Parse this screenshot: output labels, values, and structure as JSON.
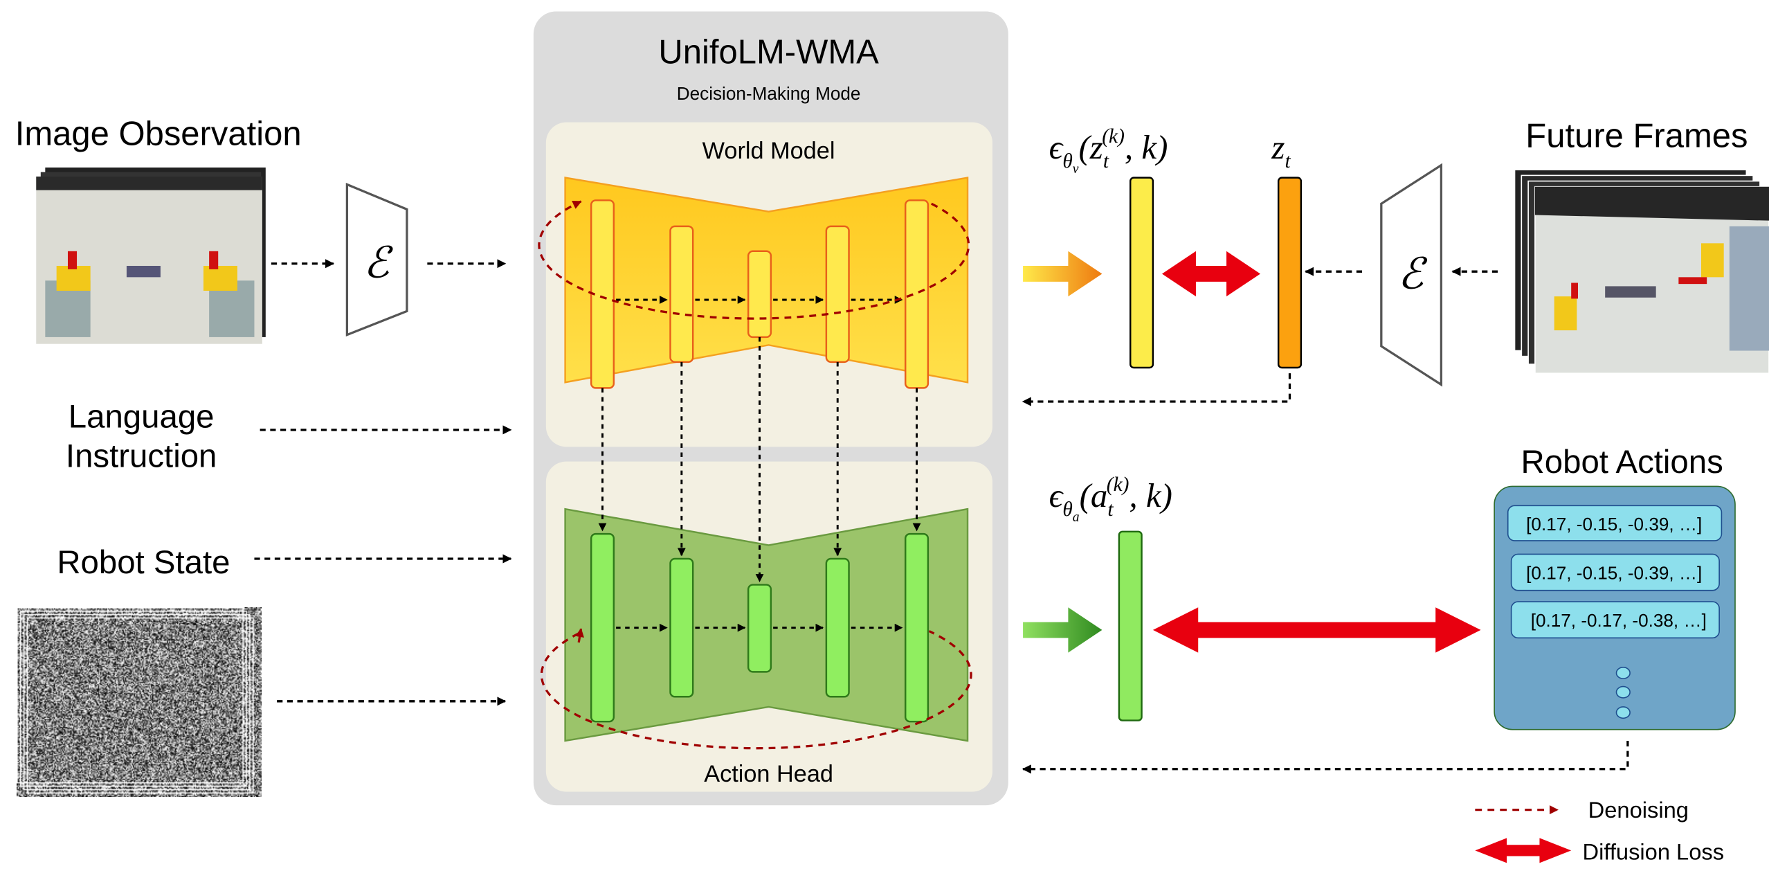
{
  "title": "UnifoLM-WMA",
  "subtitle": "Decision-Making Mode",
  "world_model_label": "World Model",
  "action_head_label": "Action Head",
  "inputs": {
    "image_observation": "Image Observation",
    "language_instruction_line1": "Language",
    "language_instruction_line2": "Instruction",
    "robot_state": "Robot State"
  },
  "future_frames": "Future Frames",
  "encoder_symbol": "ℰ",
  "math": {
    "eps": "ϵ",
    "theta": "θ",
    "v": "v",
    "a": "a",
    "z": "z",
    "t": "t",
    "k": "(k)",
    "open": "(",
    "close": ", k)"
  },
  "robot_actions": {
    "title": "Robot Actions",
    "rows": [
      "[0.17, -0.15, -0.39, …]",
      "[0.17, -0.15, -0.39, …]",
      "[0.17, -0.17, -0.38, …]"
    ]
  },
  "legend": {
    "denoising": "Denoising",
    "diffusion_loss": "Diffusion Loss"
  },
  "colors": {
    "world_model": "#ffd42a",
    "action_head": "#9bc46a",
    "loss_arrow": "#e8000f",
    "denoising": "#a00000",
    "z_bar": "#fca10f",
    "eps_v_bar": "#fcec4a",
    "eps_a_bar": "#90ea60",
    "actions_box": "#6fa5c8"
  }
}
